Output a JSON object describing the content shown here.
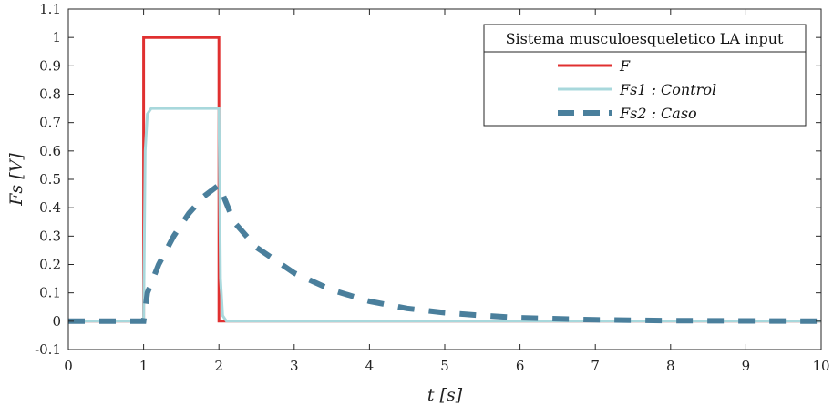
{
  "chart_data": {
    "type": "line",
    "xlabel": "t [s]",
    "ylabel": "Fs [V]",
    "xlim": [
      0,
      10
    ],
    "ylim": [
      -0.1,
      1.1
    ],
    "xticks": [
      0,
      1,
      2,
      3,
      4,
      5,
      6,
      7,
      8,
      9,
      10
    ],
    "yticks": [
      -0.1,
      0,
      0.1,
      0.2,
      0.3,
      0.4,
      0.5,
      0.6,
      0.7,
      0.8,
      0.9,
      1,
      1.1
    ],
    "xtick_labels": [
      "0",
      "1",
      "2",
      "3",
      "4",
      "5",
      "6",
      "7",
      "8",
      "9",
      "10"
    ],
    "ytick_labels": [
      "-0.1",
      "0",
      "0.1",
      "0.2",
      "0.3",
      "0.4",
      "0.5",
      "0.6",
      "0.7",
      "0.8",
      "0.9",
      "1",
      "1.1"
    ],
    "grid": false,
    "legend": {
      "title": "Sistema musculoesqueletico LA input",
      "placement": "top-right"
    },
    "series": [
      {
        "name": "F",
        "color": "#e03030",
        "style": "solid",
        "x": [
          0,
          1,
          1,
          2,
          2,
          10
        ],
        "y": [
          0,
          0,
          1,
          1,
          0,
          0
        ]
      },
      {
        "name": "Fs1 : Control",
        "color": "#a8d8dc",
        "style": "solid",
        "x": [
          0,
          1,
          1.02,
          1.05,
          1.1,
          2,
          2.02,
          2.05,
          2.1,
          10
        ],
        "y": [
          0,
          0,
          0.6,
          0.73,
          0.75,
          0.75,
          0.15,
          0.02,
          0,
          0
        ]
      },
      {
        "name": "Fs2 : Caso",
        "color": "#4a7f9c",
        "style": "dashed",
        "x": [
          0,
          1,
          1.05,
          1.2,
          1.4,
          1.6,
          1.8,
          2,
          2.2,
          2.5,
          3,
          3.5,
          4,
          4.5,
          5,
          5.5,
          6,
          7,
          8,
          9,
          10
        ],
        "y": [
          0,
          0,
          0.1,
          0.2,
          0.3,
          0.38,
          0.44,
          0.48,
          0.35,
          0.26,
          0.17,
          0.11,
          0.07,
          0.045,
          0.03,
          0.02,
          0.012,
          0.005,
          0.002,
          0.001,
          0
        ]
      }
    ]
  }
}
